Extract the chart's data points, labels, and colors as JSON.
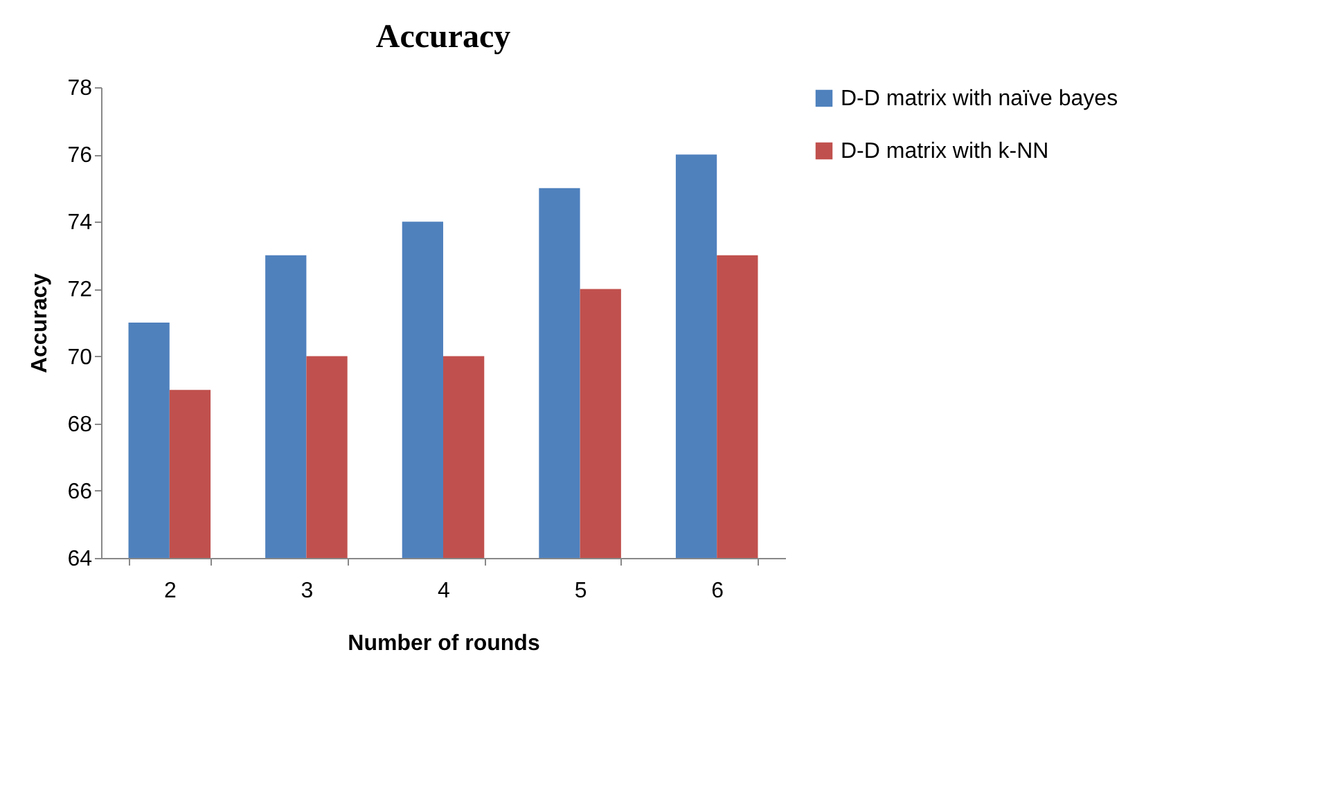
{
  "chart_data": {
    "type": "bar",
    "title": "Accuracy",
    "xlabel": "Number of rounds",
    "ylabel": "Accuracy",
    "categories": [
      "2",
      "3",
      "4",
      "5",
      "6"
    ],
    "series": [
      {
        "name": "D-D matrix with naïve bayes",
        "color": "#4f81bd",
        "values": [
          71,
          73,
          74,
          75,
          76
        ]
      },
      {
        "name": "D-D matrix with k-NN",
        "color": "#c0504d",
        "values": [
          69,
          70,
          70,
          72,
          73
        ]
      }
    ],
    "ylim": [
      64,
      78
    ],
    "yticks": [
      64,
      66,
      68,
      70,
      72,
      74,
      76,
      78
    ],
    "grid": false,
    "legend": "right"
  }
}
